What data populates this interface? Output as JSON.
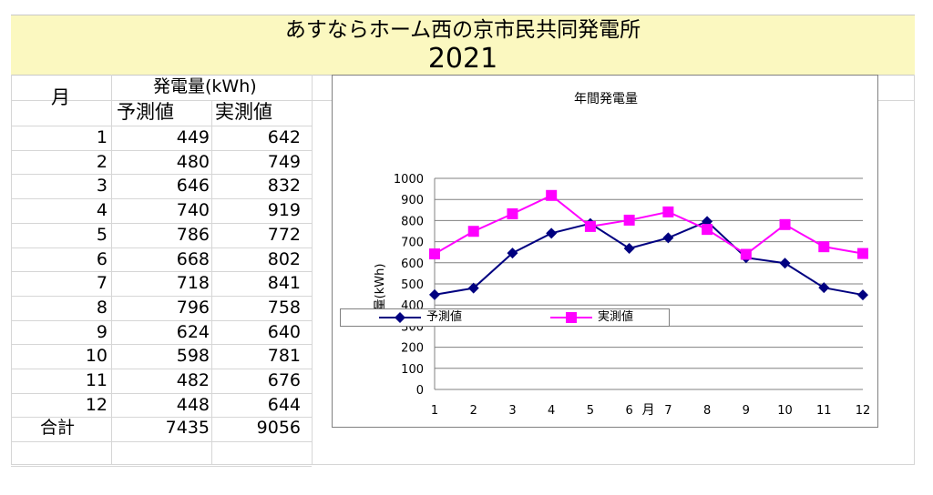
{
  "sheet": {
    "title": "あすならホーム西の京市民共同発電所",
    "year": "2021",
    "col_month": "月",
    "col_group": "発電量(kWh)",
    "col_pred": "予測値",
    "col_actual": "実測値",
    "rows": [
      {
        "month": "1",
        "pred": "449",
        "actual": "642"
      },
      {
        "month": "2",
        "pred": "480",
        "actual": "749"
      },
      {
        "month": "3",
        "pred": "646",
        "actual": "832"
      },
      {
        "month": "4",
        "pred": "740",
        "actual": "919"
      },
      {
        "month": "5",
        "pred": "786",
        "actual": "772"
      },
      {
        "month": "6",
        "pred": "668",
        "actual": "802"
      },
      {
        "month": "7",
        "pred": "718",
        "actual": "841"
      },
      {
        "month": "8",
        "pred": "796",
        "actual": "758"
      },
      {
        "month": "9",
        "pred": "624",
        "actual": "640"
      },
      {
        "month": "10",
        "pred": "598",
        "actual": "781"
      },
      {
        "month": "11",
        "pred": "482",
        "actual": "676"
      },
      {
        "month": "12",
        "pred": "448",
        "actual": "644"
      }
    ],
    "total_label": "合計",
    "total_pred": "7435",
    "total_actual": "9056"
  },
  "chart_data": {
    "type": "line",
    "title": "年間発電量",
    "xlabel": "月",
    "ylabel": "電量(kWh)",
    "categories": [
      "1",
      "2",
      "3",
      "4",
      "5",
      "6",
      "7",
      "8",
      "9",
      "10",
      "11",
      "12"
    ],
    "ylim": [
      0,
      1000
    ],
    "ytick_step": 100,
    "grid": true,
    "legend": "bottom-left, overlapping plot",
    "series": [
      {
        "name": "予測値",
        "color": "#000080",
        "marker": "diamond",
        "values": [
          449,
          480,
          646,
          740,
          786,
          668,
          718,
          796,
          624,
          598,
          482,
          448
        ]
      },
      {
        "name": "実測値",
        "color": "#ff00ff",
        "marker": "square",
        "values": [
          642,
          749,
          832,
          919,
          772,
          802,
          841,
          758,
          640,
          781,
          676,
          644
        ]
      }
    ]
  }
}
